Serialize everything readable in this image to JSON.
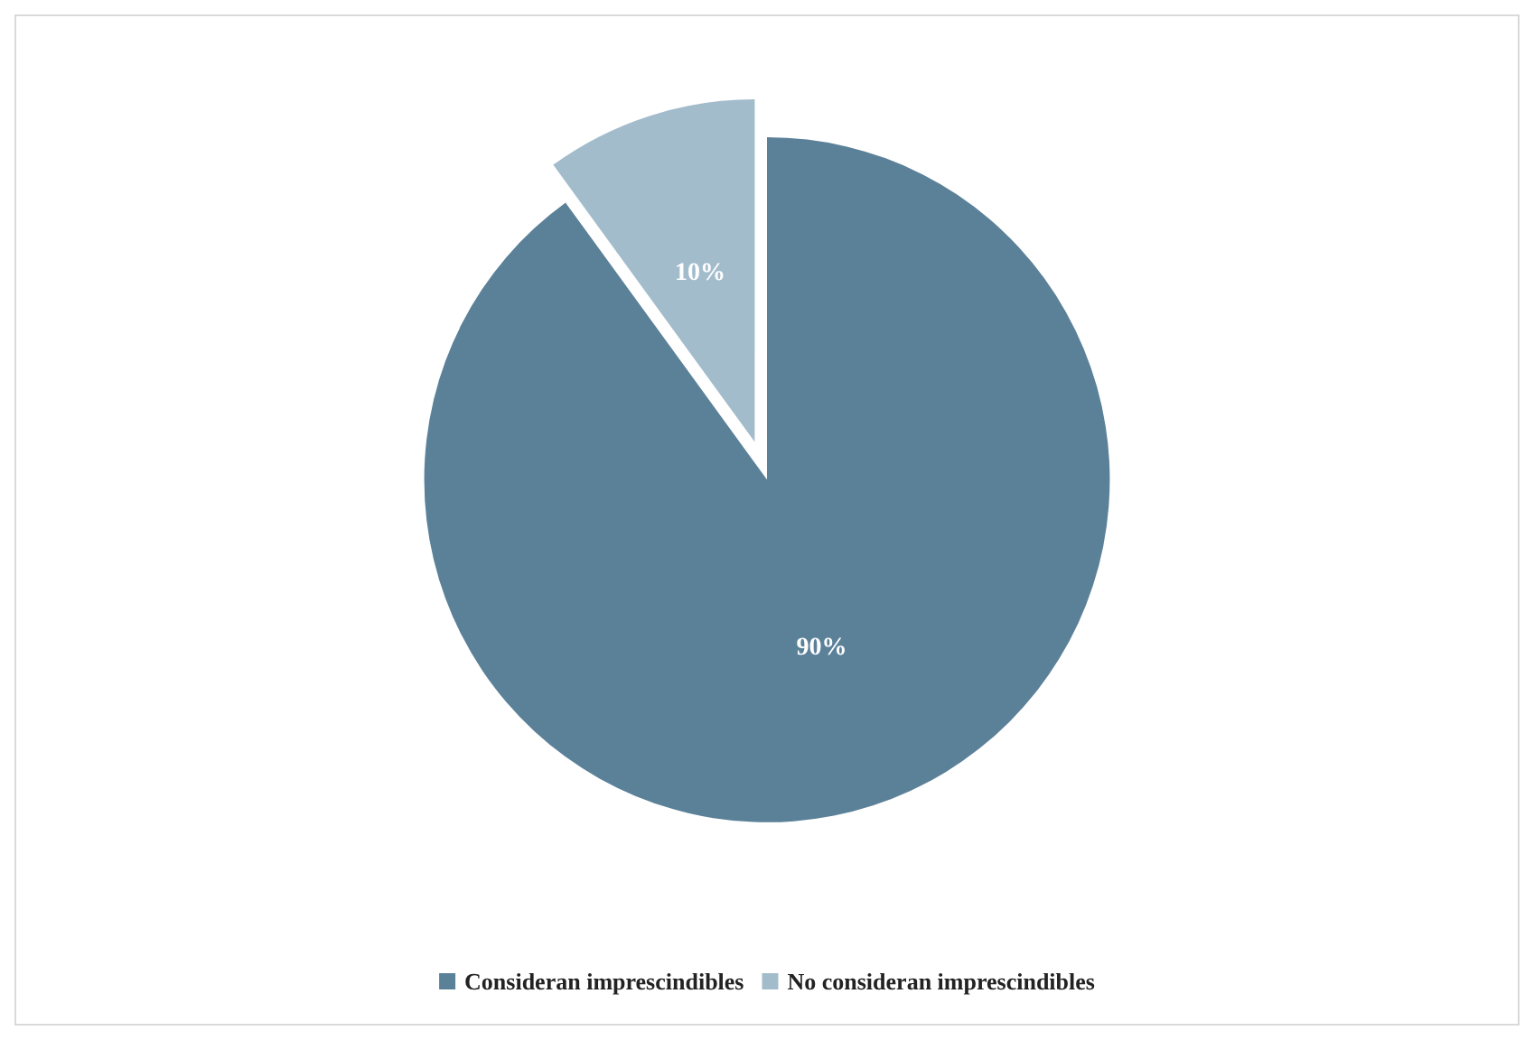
{
  "chart_data": {
    "type": "pie",
    "categories": [
      "Consideran imprescindibles",
      "No consideran imprescindibles"
    ],
    "values": [
      90,
      10
    ],
    "colors": [
      "#5b8199",
      "#a3bccb"
    ],
    "value_labels": [
      "90%",
      "10%"
    ],
    "legend": "bottom"
  }
}
